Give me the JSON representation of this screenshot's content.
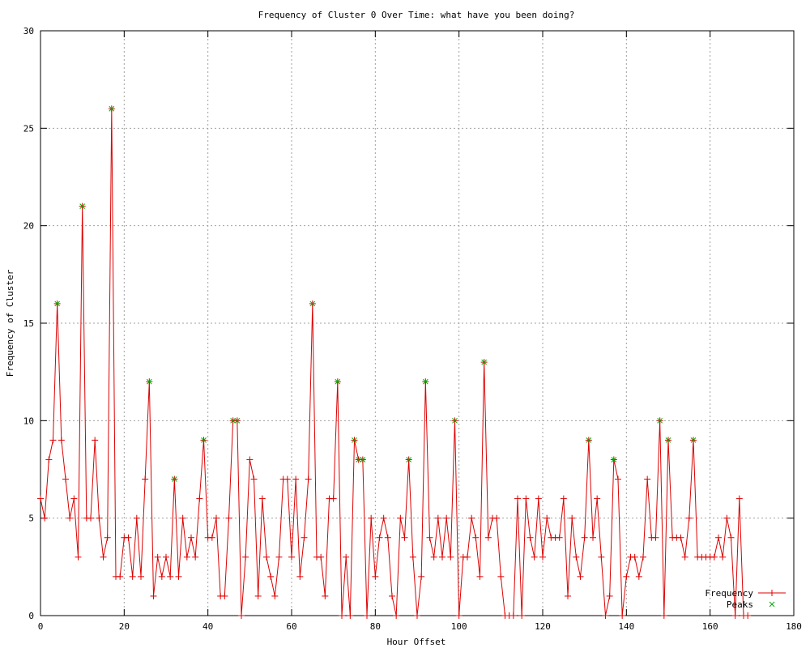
{
  "chart_data": {
    "type": "line",
    "title": "Frequency of Cluster 0 Over Time: what have you been doing?",
    "xlabel": "Hour Offset",
    "ylabel": "Frequency of Cluster",
    "xlim": [
      0,
      180
    ],
    "ylim": [
      0,
      30
    ],
    "xticks": [
      0,
      20,
      40,
      60,
      80,
      100,
      120,
      140,
      160,
      180
    ],
    "yticks": [
      0,
      5,
      10,
      15,
      20,
      25,
      30
    ],
    "grid": true,
    "legend_position": "bottom-right",
    "colors": {
      "frequency": "#dd0000",
      "peaks": "#00aa00",
      "grid": "#a0a0a0"
    },
    "series": [
      {
        "name": "Frequency",
        "x": [
          0,
          1,
          2,
          3,
          4,
          5,
          6,
          7,
          8,
          9,
          10,
          11,
          12,
          13,
          14,
          15,
          16,
          17,
          18,
          19,
          20,
          21,
          22,
          23,
          24,
          25,
          26,
          27,
          28,
          29,
          30,
          31,
          32,
          33,
          34,
          35,
          36,
          37,
          38,
          39,
          40,
          41,
          42,
          43,
          44,
          45,
          46,
          47,
          48,
          49,
          50,
          51,
          52,
          53,
          54,
          55,
          56,
          57,
          58,
          59,
          60,
          61,
          62,
          63,
          64,
          65,
          66,
          67,
          68,
          69,
          70,
          71,
          72,
          73,
          74,
          75,
          76,
          77,
          78,
          79,
          80,
          81,
          82,
          83,
          84,
          85,
          86,
          87,
          88,
          89,
          90,
          91,
          92,
          93,
          94,
          95,
          96,
          97,
          98,
          99,
          100,
          101,
          102,
          103,
          104,
          105,
          106,
          107,
          108,
          109,
          110,
          111,
          112,
          113,
          114,
          115,
          116,
          117,
          118,
          119,
          120,
          121,
          122,
          123,
          124,
          125,
          126,
          127,
          128,
          129,
          130,
          131,
          132,
          133,
          134,
          135,
          136,
          137,
          138,
          139,
          140,
          141,
          142,
          143,
          144,
          145,
          146,
          147,
          148,
          149,
          150,
          151,
          152,
          153,
          154,
          155,
          156,
          157,
          158,
          159,
          160,
          161,
          162,
          163,
          164,
          165,
          166,
          167,
          168,
          169
        ],
        "y": [
          6,
          5,
          8,
          9,
          16,
          9,
          7,
          5,
          6,
          3,
          21,
          5,
          5,
          9,
          5,
          3,
          4,
          26,
          2,
          2,
          4,
          4,
          2,
          5,
          2,
          7,
          12,
          1,
          3,
          2,
          3,
          2,
          7,
          2,
          5,
          3,
          4,
          3,
          6,
          9,
          4,
          4,
          5,
          1,
          1,
          5,
          10,
          10,
          0,
          3,
          8,
          7,
          1,
          6,
          3,
          2,
          1,
          3,
          7,
          7,
          3,
          7,
          2,
          4,
          7,
          16,
          3,
          3,
          1,
          6,
          6,
          12,
          0,
          3,
          0,
          9,
          8,
          8,
          0,
          5,
          2,
          4,
          5,
          4,
          1,
          0,
          5,
          4,
          8,
          3,
          0,
          2,
          12,
          4,
          3,
          5,
          3,
          5,
          3,
          10,
          0,
          3,
          3,
          5,
          4,
          2,
          13,
          4,
          5,
          5,
          2,
          0,
          0,
          0,
          6,
          0,
          6,
          4,
          3,
          6,
          3,
          5,
          4,
          4,
          4,
          6,
          1,
          5,
          3,
          2,
          4,
          9,
          4,
          6,
          3,
          0,
          1,
          8,
          7,
          0,
          2,
          3,
          3,
          2,
          3,
          7,
          4,
          4,
          10,
          0,
          9,
          4,
          4,
          4,
          3,
          5,
          9,
          3,
          3,
          3,
          3,
          3,
          4,
          3,
          5,
          4,
          0,
          6,
          0,
          0
        ]
      },
      {
        "name": "Peaks",
        "x": [
          4,
          10,
          17,
          26,
          32,
          39,
          46,
          47,
          65,
          71,
          75,
          76,
          77,
          88,
          92,
          99,
          106,
          131,
          137,
          148,
          150,
          156
        ],
        "y": [
          16,
          21,
          26,
          12,
          7,
          9,
          10,
          10,
          16,
          12,
          9,
          8,
          8,
          8,
          12,
          10,
          13,
          9,
          8,
          10,
          9,
          9
        ]
      }
    ]
  }
}
